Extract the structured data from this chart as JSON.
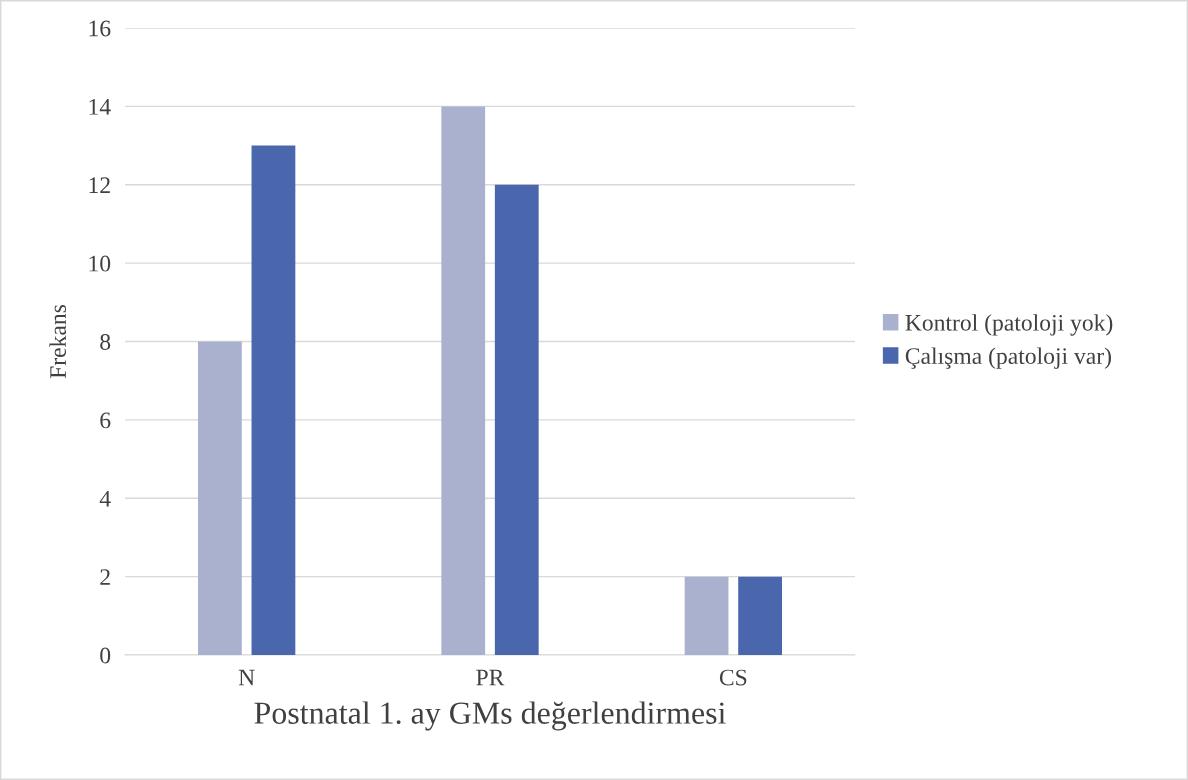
{
  "chart_data": {
    "type": "bar",
    "xlabel": "Postnatal 1. ay GMs değerlendirmesi",
    "ylabel": "Frekans",
    "categories": [
      "N",
      "PR",
      "CS"
    ],
    "series": [
      {
        "name": "Kontrol (patoloji yok)",
        "color": "#aab1cf",
        "values": [
          8,
          14,
          2
        ]
      },
      {
        "name": "Çalışma (patoloji var)",
        "color": "#4a66ad",
        "values": [
          13,
          12,
          2
        ]
      }
    ],
    "ylim": [
      0,
      16
    ],
    "yticks": [
      0,
      2,
      4,
      6,
      8,
      10,
      12,
      14,
      16
    ],
    "grid": "y",
    "legend": "right"
  }
}
